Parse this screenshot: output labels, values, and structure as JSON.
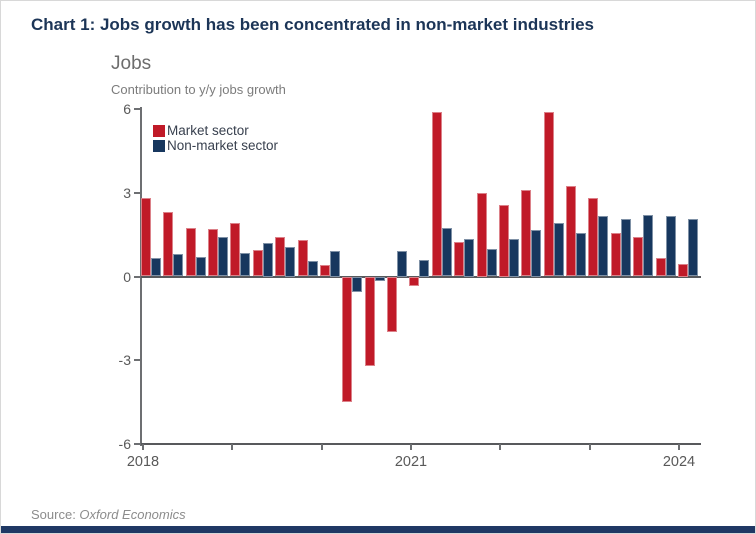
{
  "title": "Chart 1: Jobs growth has been concentrated in non-market industries",
  "source": {
    "prefix": "Source: ",
    "name": "Oxford Economics"
  },
  "colors": {
    "market_red": "#c01a28",
    "nonmarket_navy": "#17375e",
    "title_navy": "#1c3557",
    "accent_bar": "#1f3864",
    "axis_gray": "#6d6f72",
    "label_gray": "#595959"
  },
  "legend": [
    {
      "label": "Market sector",
      "color": "#c01a28"
    },
    {
      "label": "Non-market sector",
      "color": "#17375e"
    }
  ],
  "chart_data": {
    "type": "bar",
    "title": "Jobs",
    "subtitle": "Contribution to y/y jobs growth",
    "ylim": [
      -6,
      6
    ],
    "y_ticks": [
      6,
      3,
      0,
      -3,
      -6
    ],
    "x_tick_years": [
      "2018",
      "2019",
      "2020",
      "2021",
      "2022",
      "2023",
      "2024"
    ],
    "x_labeled_years": [
      "2018",
      "2021",
      "2024"
    ],
    "grid": "none",
    "legend_position": "top-left-inside",
    "categories": [
      "2018 Q1",
      "2018 Q2",
      "2018 Q3",
      "2018 Q4",
      "2019 Q1",
      "2019 Q2",
      "2019 Q3",
      "2019 Q4",
      "2020 Q1",
      "2020 Q2",
      "2020 Q3",
      "2020 Q4",
      "2021 Q1",
      "2021 Q2",
      "2021 Q3",
      "2021 Q4",
      "2022 Q1",
      "2022 Q2",
      "2022 Q3",
      "2022 Q4",
      "2023 Q1",
      "2023 Q2",
      "2023 Q3",
      "2023 Q4",
      "2024 Q1"
    ],
    "series": [
      {
        "name": "Market sector",
        "color": "#c01a28",
        "values": [
          2.8,
          2.3,
          1.75,
          1.7,
          1.9,
          0.95,
          1.4,
          1.3,
          0.4,
          -4.5,
          -3.2,
          -2.0,
          -0.35,
          5.9,
          1.25,
          3.0,
          2.55,
          3.1,
          5.9,
          3.25,
          2.8,
          1.55,
          1.4,
          0.65,
          0.45
        ]
      },
      {
        "name": "Non-market sector",
        "color": "#17375e",
        "values": [
          0.65,
          0.8,
          0.7,
          1.4,
          0.85,
          1.2,
          1.05,
          0.55,
          0.9,
          -0.55,
          -0.15,
          0.9,
          0.6,
          1.75,
          1.35,
          1.0,
          1.35,
          1.65,
          1.9,
          1.55,
          2.15,
          2.05,
          2.2,
          2.15,
          2.05
        ]
      }
    ]
  }
}
